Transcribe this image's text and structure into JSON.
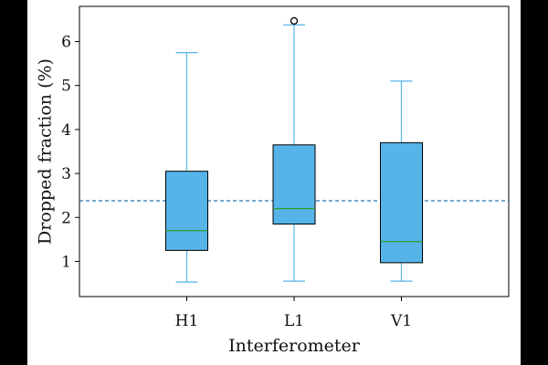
{
  "chart_data": {
    "type": "boxplot",
    "xlabel": "Interferometer",
    "ylabel": "Dropped fraction (%)",
    "ylim": [
      0.2,
      6.8
    ],
    "yticks": [
      1,
      2,
      3,
      4,
      5,
      6
    ],
    "categories": [
      "H1",
      "L1",
      "V1"
    ],
    "boxes": [
      {
        "label": "H1",
        "whisker_low": 0.53,
        "q1": 1.25,
        "median": 1.7,
        "q3": 3.05,
        "whisker_high": 5.75,
        "outliers": []
      },
      {
        "label": "L1",
        "whisker_low": 0.55,
        "q1": 1.85,
        "median": 2.2,
        "q3": 3.65,
        "whisker_high": 6.38,
        "outliers": [
          6.47
        ]
      },
      {
        "label": "V1",
        "whisker_low": 0.55,
        "q1": 0.97,
        "median": 1.45,
        "q3": 3.7,
        "whisker_high": 5.1,
        "outliers": []
      }
    ],
    "reference_line": {
      "y": 2.38,
      "style": "dashed"
    },
    "colors": {
      "box_fill": "#56b4e9",
      "whisker": "#56b4e9",
      "median": "#2ca02c",
      "reference": "#1f77b4",
      "box_edge": "#000000"
    },
    "grid": false
  }
}
